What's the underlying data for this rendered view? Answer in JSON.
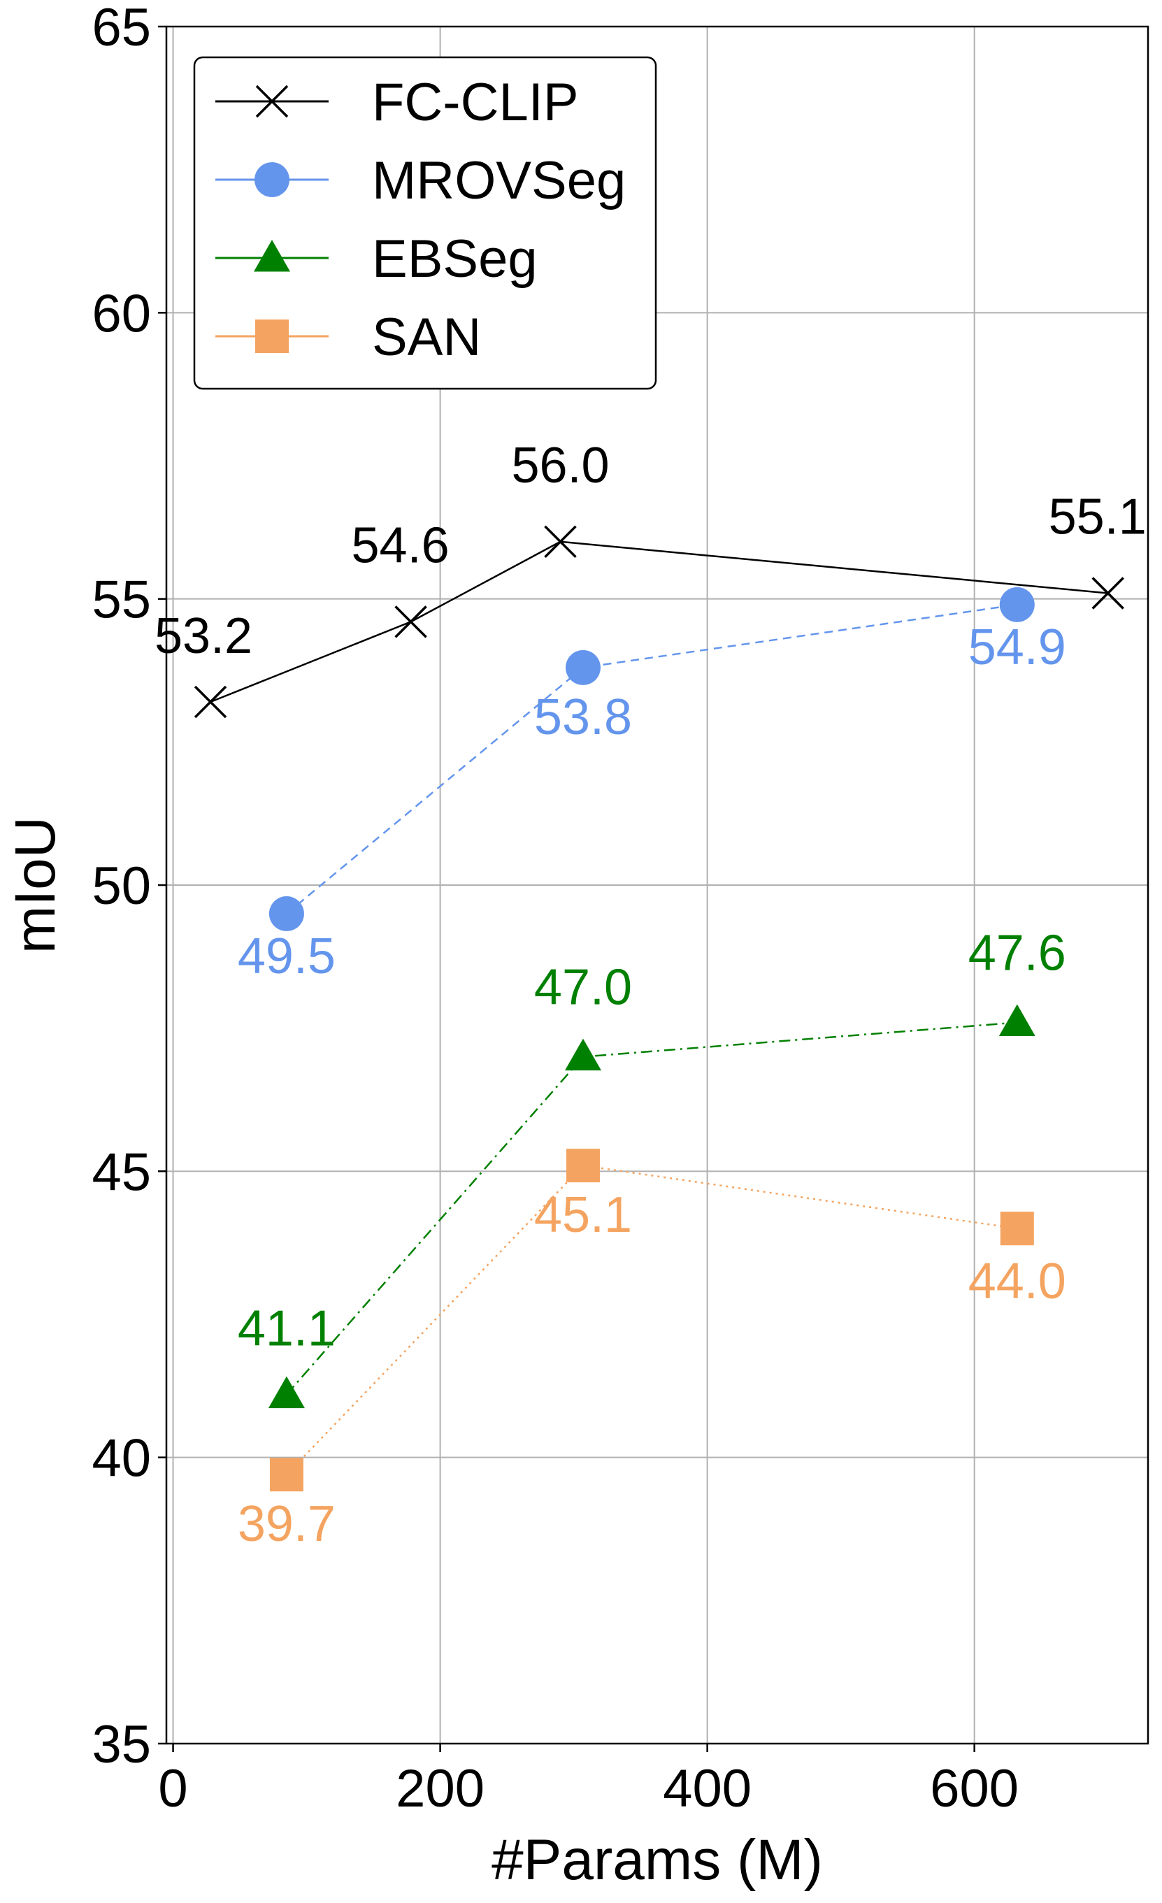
{
  "chart_data": {
    "type": "line",
    "xlabel": "#Params (M)",
    "ylabel": "mIoU",
    "xlim": [
      -5,
      730
    ],
    "ylim": [
      35,
      65
    ],
    "xticks": [
      0,
      200,
      400,
      600
    ],
    "xtick_labels": [
      "0",
      "200",
      "400",
      "600"
    ],
    "yticks": [
      35,
      40,
      45,
      50,
      55,
      60,
      65
    ],
    "ytick_labels": [
      "35",
      "40",
      "45",
      "50",
      "55",
      "60",
      "65"
    ],
    "grid": true,
    "legend_position": "top-left",
    "series": [
      {
        "name": "FC-CLIP",
        "color": "#000000",
        "marker": "x",
        "line_style": "solid",
        "x": [
          28,
          178,
          290,
          700
        ],
        "values": [
          53.2,
          54.6,
          56.0,
          55.1
        ],
        "labels": [
          "53.2",
          "54.6",
          "56.0",
          "55.1"
        ]
      },
      {
        "name": "MROVSeg",
        "color": "#6495ED",
        "marker": "circle",
        "line_style": "dashed",
        "x": [
          85,
          307,
          632
        ],
        "values": [
          49.5,
          53.8,
          54.9
        ],
        "labels": [
          "49.5",
          "53.8",
          "54.9"
        ]
      },
      {
        "name": "EBSeg",
        "color": "#008000",
        "marker": "triangle",
        "line_style": "dashdot",
        "x": [
          85,
          307,
          632
        ],
        "values": [
          41.1,
          47.0,
          47.6
        ],
        "labels": [
          "41.1",
          "47.0",
          "47.6"
        ]
      },
      {
        "name": "SAN",
        "color": "#F4A460",
        "marker": "square",
        "line_style": "dotted",
        "x": [
          85,
          307,
          632
        ],
        "values": [
          39.7,
          45.1,
          44.0
        ],
        "labels": [
          "39.7",
          "45.1",
          "44.0"
        ]
      }
    ]
  }
}
